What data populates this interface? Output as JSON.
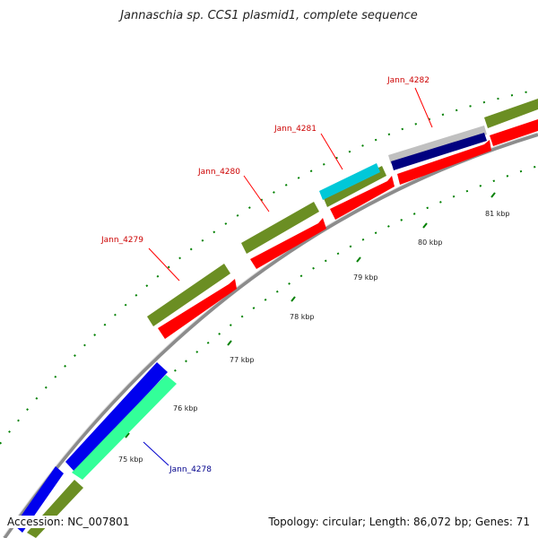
{
  "title": "Jannaschia sp. CCS1 plasmid1, complete sequence",
  "footer": {
    "accession": "Accession: NC_007801",
    "summary": "Topology: circular; Length: 86,072 bp; Genes: 71"
  },
  "kbp_labels": [
    "75 kbp",
    "76 kbp",
    "77 kbp",
    "78 kbp",
    "79 kbp",
    "80 kbp",
    "81 kbp"
  ],
  "gene_labels": [
    {
      "text": "Jann_4278",
      "color": "#00008b"
    },
    {
      "text": "Jann_4279",
      "color": "#cc0000"
    },
    {
      "text": "Jann_4280",
      "color": "#cc0000"
    },
    {
      "text": "Jann_4281",
      "color": "#cc0000"
    },
    {
      "text": "Jann_4282",
      "color": "#cc0000"
    }
  ],
  "colors": {
    "backbone": "#8c8c8c",
    "forward_cds": "#6b8e23",
    "reverse_cds": "#ff0000",
    "blue_feature": "#0000ee",
    "aqua_feature": "#33ff99",
    "cyan_feature": "#00c8d8",
    "navy_feature": "#000080",
    "silver_feature": "#c0c0c0",
    "tick": "#008000"
  }
}
